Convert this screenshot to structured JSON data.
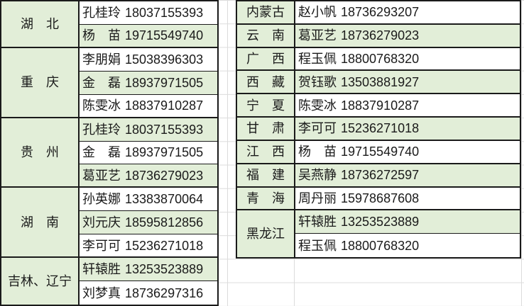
{
  "colors": {
    "cell_green": "#E2EED8",
    "table_border": "#1A1A1A",
    "faint_gridline": "#DCDCDC",
    "text": "#1A1A1A",
    "background": "#FFFFFF"
  },
  "left_table": {
    "groups": [
      {
        "province": "湖　北",
        "contacts": [
          {
            "name": "孔桂玲",
            "phone": "18037155393"
          },
          {
            "name": "杨　苗",
            "phone": "19715549740"
          }
        ]
      },
      {
        "province": "重　庆",
        "contacts": [
          {
            "name": "李朋娟",
            "phone": "15038396303"
          },
          {
            "name": "金　磊",
            "phone": "18937971505"
          },
          {
            "name": "陈雯冰",
            "phone": "18837910287"
          }
        ]
      },
      {
        "province": "贵　州",
        "contacts": [
          {
            "name": "孔桂玲",
            "phone": "18037155393"
          },
          {
            "name": "金　磊",
            "phone": "18937971505"
          },
          {
            "name": "葛亚艺",
            "phone": "18736279023"
          }
        ]
      },
      {
        "province": "湖　南",
        "contacts": [
          {
            "name": "孙英娜",
            "phone": "13383870064"
          },
          {
            "name": "刘元庆",
            "phone": "18595812856"
          },
          {
            "name": "李可可",
            "phone": "15236271018"
          }
        ]
      },
      {
        "province": "吉林、辽宁",
        "contacts": [
          {
            "name": "轩辕胜",
            "phone": "13253523889"
          },
          {
            "name": "刘梦真",
            "phone": "18736297316"
          }
        ]
      }
    ]
  },
  "right_table": {
    "groups": [
      {
        "province": "内蒙古",
        "contacts": [
          {
            "name": "赵小帆",
            "phone": "18736293207"
          }
        ]
      },
      {
        "province": "云　南",
        "contacts": [
          {
            "name": "葛亚艺",
            "phone": "18736279023"
          }
        ]
      },
      {
        "province": "广　西",
        "contacts": [
          {
            "name": "程玉佩",
            "phone": "18800768320"
          }
        ]
      },
      {
        "province": "西　藏",
        "contacts": [
          {
            "name": "贺钰歌",
            "phone": "13503881927"
          }
        ]
      },
      {
        "province": "宁　夏",
        "contacts": [
          {
            "name": "陈雯冰",
            "phone": "18837910287"
          }
        ]
      },
      {
        "province": "甘　肃",
        "contacts": [
          {
            "name": "李可可",
            "phone": "15236271018"
          }
        ]
      },
      {
        "province": "江　西",
        "contacts": [
          {
            "name": "杨　苗",
            "phone": "19715549740"
          }
        ]
      },
      {
        "province": "福　建",
        "contacts": [
          {
            "name": "吴燕静",
            "phone": "18736272597"
          }
        ]
      },
      {
        "province": "青　海",
        "contacts": [
          {
            "name": "周丹丽",
            "phone": "15978687608"
          }
        ]
      },
      {
        "province": "黑龙江",
        "contacts": [
          {
            "name": "轩辕胜",
            "phone": "13253523889"
          },
          {
            "name": "程玉佩",
            "phone": "18800768320"
          }
        ]
      }
    ]
  }
}
